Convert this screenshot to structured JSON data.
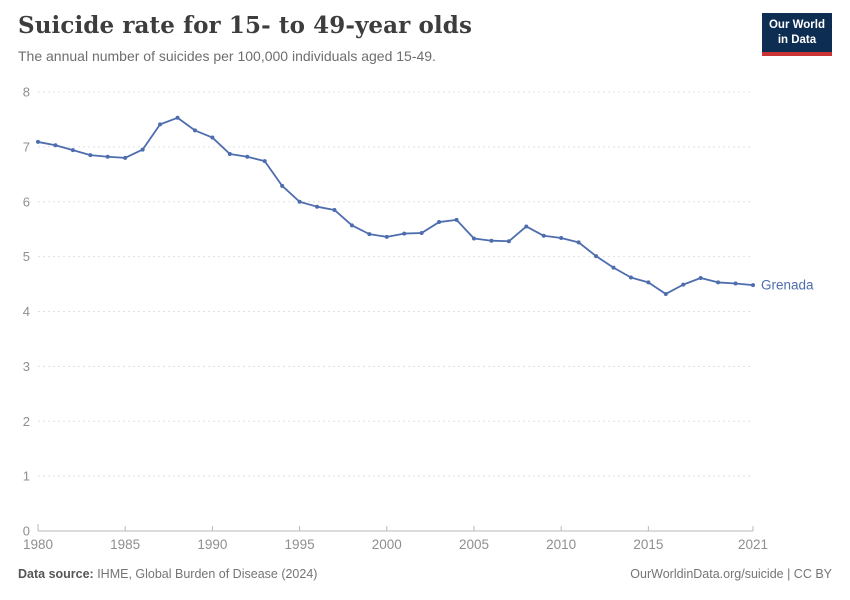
{
  "header": {
    "title": "Suicide rate for 15- to 49-year olds",
    "subtitle": "The annual number of suicides per 100,000 individuals aged 15-49.",
    "logo": {
      "line1": "Our World",
      "line2": "in Data",
      "bg_color": "#0d2d52",
      "accent_color": "#cb3434"
    }
  },
  "chart_data": {
    "type": "line",
    "title": "Suicide rate for 15- to 49-year olds",
    "xlabel": "",
    "ylabel": "",
    "x": [
      1980,
      1981,
      1982,
      1983,
      1984,
      1985,
      1986,
      1987,
      1988,
      1989,
      1990,
      1991,
      1992,
      1993,
      1994,
      1995,
      1996,
      1997,
      1998,
      1999,
      2000,
      2001,
      2002,
      2003,
      2004,
      2005,
      2006,
      2007,
      2008,
      2009,
      2010,
      2011,
      2012,
      2013,
      2014,
      2015,
      2016,
      2017,
      2018,
      2019,
      2020,
      2021
    ],
    "series": [
      {
        "name": "Grenada",
        "color": "#4d6dae",
        "values": [
          7.09,
          7.03,
          6.94,
          6.85,
          6.82,
          6.8,
          6.95,
          7.41,
          7.53,
          7.3,
          7.17,
          6.87,
          6.82,
          6.74,
          6.29,
          6.0,
          5.91,
          5.85,
          5.57,
          5.41,
          5.36,
          5.42,
          5.43,
          5.63,
          5.67,
          5.33,
          5.29,
          5.28,
          5.55,
          5.38,
          5.34,
          5.26,
          5.01,
          4.8,
          4.62,
          4.53,
          4.32,
          4.49,
          4.61,
          4.53,
          4.51,
          4.48
        ]
      }
    ],
    "ylim": [
      0,
      8
    ],
    "yticks": [
      0,
      1,
      2,
      3,
      4,
      5,
      6,
      7,
      8
    ],
    "xticks": [
      1980,
      1985,
      1990,
      1995,
      2000,
      2005,
      2010,
      2015,
      2021
    ],
    "xlim": [
      1980,
      2021
    ],
    "grid": "horizontal-dashed",
    "legend_position": "end-of-line",
    "axis_text_color": "#8f8f8f",
    "grid_color": "#e0e0e0",
    "axis_line_color": "#b8b8b8"
  },
  "footer": {
    "source_label": "Data source:",
    "source_text": " IHME, Global Burden of Disease (2024)",
    "license_text": "OurWorldinData.org/suicide | CC BY"
  }
}
